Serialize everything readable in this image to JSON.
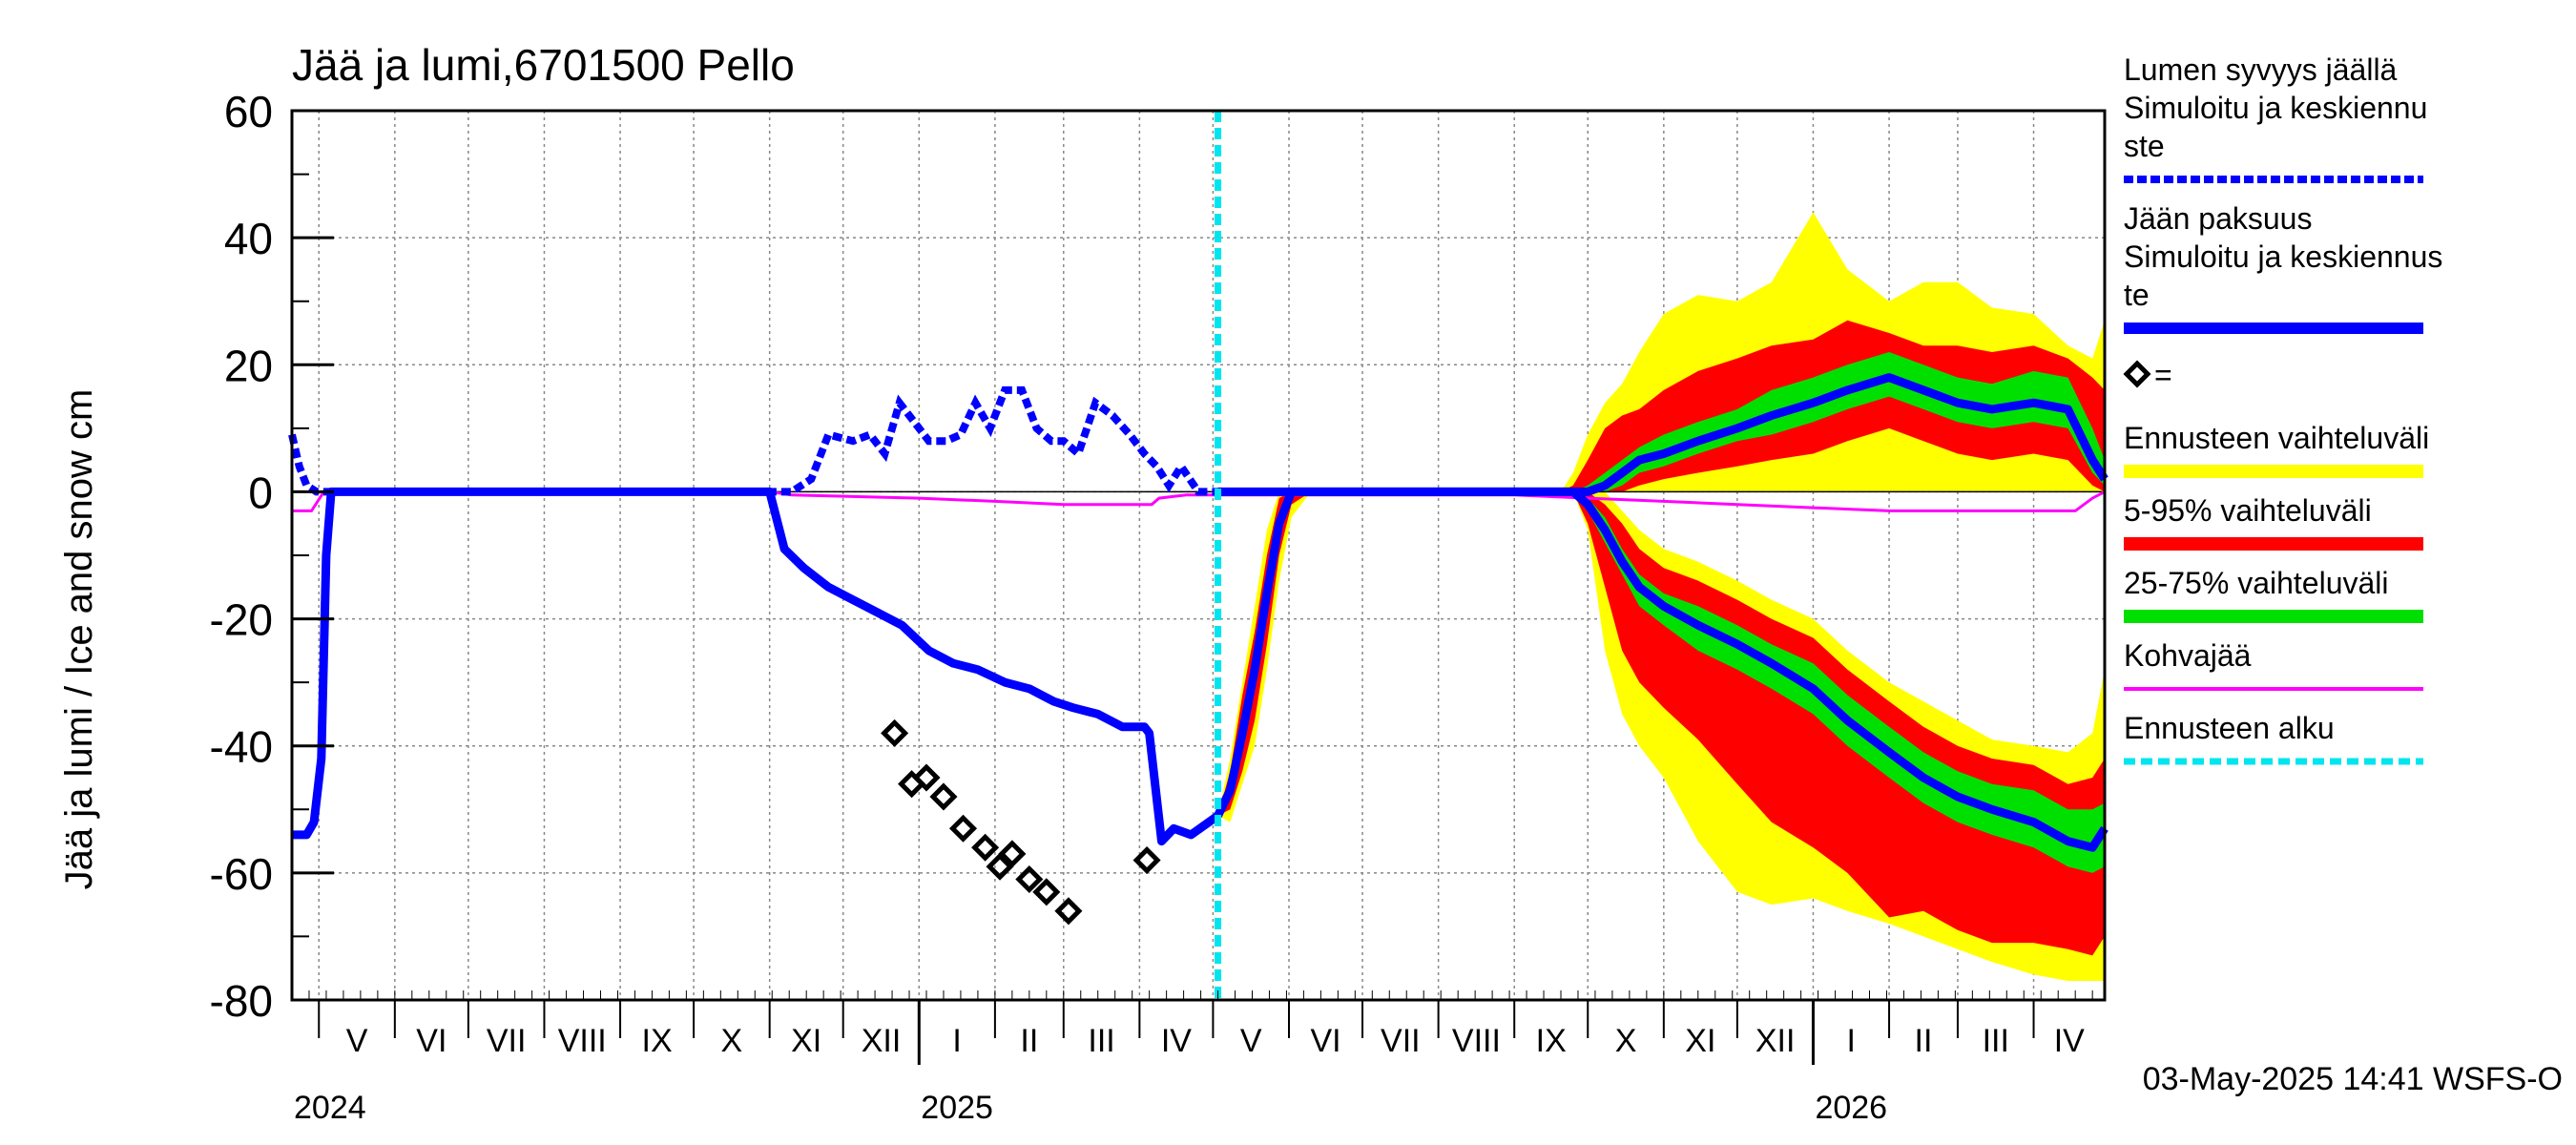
{
  "chart_data": {
    "type": "line",
    "title": "Jää ja lumi,6701500 Pello",
    "ylabel": "Jää ja lumi / Ice and snow    cm",
    "ylim": [
      -80,
      60
    ],
    "yticks": [
      -80,
      -60,
      -40,
      -20,
      0,
      20,
      40,
      60
    ],
    "xlim": [
      "2024-04-20",
      "2026-04-30"
    ],
    "forecast_start": "2025-05-03",
    "grid": true,
    "footer": "03-May-2025 14:41 WSFS-O",
    "months": [
      {
        "label": "V",
        "start": "2024-05-01"
      },
      {
        "label": "VI",
        "start": "2024-06-01"
      },
      {
        "label": "VII",
        "start": "2024-07-01"
      },
      {
        "label": "VIII",
        "start": "2024-08-01"
      },
      {
        "label": "IX",
        "start": "2024-09-01"
      },
      {
        "label": "X",
        "start": "2024-10-01"
      },
      {
        "label": "XI",
        "start": "2024-11-01"
      },
      {
        "label": "XII",
        "start": "2024-12-01"
      },
      {
        "label": "I",
        "start": "2025-01-01"
      },
      {
        "label": "II",
        "start": "2025-02-01"
      },
      {
        "label": "III",
        "start": "2025-03-01"
      },
      {
        "label": "IV",
        "start": "2025-04-01"
      },
      {
        "label": "V",
        "start": "2025-05-01"
      },
      {
        "label": "VI",
        "start": "2025-06-01"
      },
      {
        "label": "VII",
        "start": "2025-07-01"
      },
      {
        "label": "VIII",
        "start": "2025-08-01"
      },
      {
        "label": "IX",
        "start": "2025-09-01"
      },
      {
        "label": "X",
        "start": "2025-10-01"
      },
      {
        "label": "XI",
        "start": "2025-11-01"
      },
      {
        "label": "XII",
        "start": "2025-12-01"
      },
      {
        "label": "I",
        "start": "2026-01-01"
      },
      {
        "label": "II",
        "start": "2026-02-01"
      },
      {
        "label": "III",
        "start": "2026-03-01"
      },
      {
        "label": "IV",
        "start": "2026-04-01"
      }
    ],
    "years": [
      {
        "label": "2024",
        "date": "2024-04-20"
      },
      {
        "label": "2025",
        "date": "2025-01-01"
      },
      {
        "label": "2026",
        "date": "2026-01-01"
      }
    ],
    "legend": [
      {
        "label": "Lumen syvyys jäällä\n   Simuloitu ja keskiennu\nste",
        "color": "#0000ff",
        "style": "dashed",
        "series": "snow"
      },
      {
        "label": "Jään paksuus\n  Simuloitu ja keskiennus\nte",
        "color": "#0000ff",
        "style": "solid",
        "series": "ice"
      },
      {
        "label": "=",
        "color": "#000000",
        "style": "marker",
        "series": "observed"
      },
      {
        "label": "Ennusteen vaihteluväli",
        "color": "#ffff00",
        "style": "band"
      },
      {
        "label": "5-95% vaihteluväli",
        "color": "#ff0000",
        "style": "band"
      },
      {
        "label": "25-75% vaihteluväli",
        "color": "#00e000",
        "style": "band"
      },
      {
        "label": "Kohvajää",
        "color": "#ff00ff",
        "style": "line",
        "series": "slush"
      },
      {
        "label": "Ennusteen alku",
        "color": "#00e5ee",
        "style": "dashed-vline"
      }
    ],
    "colors": {
      "blue": "#0000ff",
      "yellow": "#ffff00",
      "red": "#ff0000",
      "green": "#00e000",
      "magenta": "#ff00ff",
      "cyan": "#00e5ee"
    },
    "series": [
      {
        "name": "Lumen syvyys jäällä",
        "style": "dashed",
        "x": [
          "2024-04-20",
          "2024-04-23",
          "2024-04-26",
          "2024-04-30",
          "2024-11-01",
          "2024-11-10",
          "2024-11-18",
          "2024-11-25",
          "2024-12-05",
          "2024-12-12",
          "2024-12-18",
          "2024-12-24",
          "2024-12-30",
          "2025-01-05",
          "2025-01-12",
          "2025-01-18",
          "2025-01-24",
          "2025-01-30",
          "2025-02-05",
          "2025-02-12",
          "2025-02-18",
          "2025-02-24",
          "2025-03-01",
          "2025-03-07",
          "2025-03-14",
          "2025-03-21",
          "2025-03-28",
          "2025-04-03",
          "2025-04-08",
          "2025-04-13",
          "2025-04-18",
          "2025-04-25",
          "2025-05-03"
        ],
        "y": [
          9,
          4,
          1,
          0,
          0,
          0,
          2,
          9,
          8,
          9,
          6,
          14,
          11,
          8,
          8,
          9,
          14,
          10,
          16,
          16,
          10,
          8,
          8,
          6,
          14,
          12,
          9,
          6,
          4,
          1,
          4,
          0,
          0
        ]
      },
      {
        "name": "Jään paksuus",
        "style": "solid",
        "x": [
          "2024-04-20",
          "2024-04-26",
          "2024-04-29",
          "2024-05-02",
          "2024-05-04",
          "2024-05-06",
          "2024-05-08",
          "2024-11-01",
          "2024-11-07",
          "2024-11-15",
          "2024-11-25",
          "2024-12-05",
          "2024-12-15",
          "2024-12-25",
          "2025-01-05",
          "2025-01-15",
          "2025-01-25",
          "2025-02-05",
          "2025-02-15",
          "2025-02-25",
          "2025-03-05",
          "2025-03-15",
          "2025-03-25",
          "2025-04-03",
          "2025-04-05",
          "2025-04-10",
          "2025-04-15",
          "2025-04-22",
          "2025-05-03"
        ],
        "y": [
          -54,
          -54,
          -52,
          -42,
          -10,
          0,
          0,
          0,
          -9,
          -12,
          -15,
          -17,
          -19,
          -21,
          -25,
          -27,
          -28,
          -30,
          -31,
          -33,
          -34,
          -35,
          -37,
          -37,
          -38,
          -55,
          -53,
          -54,
          -51
        ]
      },
      {
        "name": "Kohvajää",
        "style": "solid",
        "x": [
          "2024-04-20",
          "2024-04-28",
          "2024-05-03",
          "2024-11-01",
          "2024-11-10",
          "2025-01-01",
          "2025-02-01",
          "2025-03-01",
          "2025-04-01",
          "2025-04-06",
          "2025-04-09",
          "2025-04-20",
          "2025-05-01",
          "2025-09-01",
          "2025-10-01",
          "2025-11-01",
          "2025-12-01",
          "2026-01-01",
          "2026-02-01",
          "2026-03-01",
          "2026-04-01",
          "2026-04-18",
          "2026-04-25",
          "2026-04-30"
        ],
        "y": [
          -3,
          -3,
          0,
          0,
          -0.5,
          -1,
          -1.5,
          -2,
          -2,
          -2,
          -1,
          -0.5,
          -0.5,
          -0.5,
          -1,
          -1.5,
          -2,
          -2.5,
          -3,
          -3,
          -3,
          -3,
          -1,
          0
        ]
      }
    ],
    "observed": {
      "x": [
        "2024-12-22",
        "2024-12-29",
        "2025-01-04",
        "2025-01-11",
        "2025-01-19",
        "2025-01-28",
        "2025-02-03",
        "2025-02-08",
        "2025-02-15",
        "2025-02-22",
        "2025-03-03",
        "2025-04-04"
      ],
      "y": [
        -38,
        -46,
        -45,
        -48,
        -53,
        -56,
        -59,
        -57,
        -61,
        -63,
        -66,
        -58
      ]
    },
    "forecast": {
      "x": [
        "2025-05-03",
        "2025-05-08",
        "2025-05-13",
        "2025-05-18",
        "2025-05-23",
        "2025-05-28",
        "2025-06-02",
        "2025-06-10",
        "2025-09-10",
        "2025-09-20",
        "2025-09-25",
        "2025-10-01",
        "2025-10-08",
        "2025-10-15",
        "2025-10-22",
        "2025-11-01",
        "2025-11-15",
        "2025-12-01",
        "2025-12-15",
        "2026-01-01",
        "2026-01-15",
        "2026-02-01",
        "2026-02-15",
        "2026-03-01",
        "2026-03-15",
        "2026-04-01",
        "2026-04-15",
        "2026-04-25",
        "2026-04-30"
      ],
      "snow_mid": [
        0,
        0,
        0,
        0,
        0,
        0,
        0,
        0,
        0,
        0,
        0,
        0,
        1,
        3,
        5,
        6,
        8,
        10,
        12,
        14,
        16,
        18,
        16,
        14,
        13,
        14,
        13,
        5,
        2
      ],
      "snow_p25": [
        0,
        0,
        0,
        0,
        0,
        0,
        0,
        0,
        0,
        0,
        0,
        0,
        0,
        1,
        3,
        4,
        6,
        8,
        9,
        11,
        13,
        15,
        13,
        11,
        10,
        11,
        10,
        3,
        1
      ],
      "snow_p75": [
        0,
        0,
        0,
        0,
        0,
        0,
        0,
        0,
        0,
        0,
        0,
        1,
        3,
        5,
        7,
        9,
        11,
        13,
        16,
        18,
        20,
        22,
        20,
        18,
        17,
        19,
        18,
        10,
        5
      ],
      "snow_p05": [
        0,
        0,
        0,
        0,
        0,
        0,
        0,
        0,
        0,
        0,
        0,
        0,
        0,
        0,
        1,
        2,
        3,
        4,
        5,
        6,
        8,
        10,
        8,
        6,
        5,
        6,
        5,
        1,
        0
      ],
      "snow_p95": [
        0,
        0,
        0,
        0,
        0,
        0,
        0,
        0,
        0,
        0,
        1,
        5,
        10,
        12,
        13,
        16,
        19,
        21,
        23,
        24,
        27,
        25,
        23,
        23,
        22,
        23,
        21,
        18,
        16
      ],
      "snow_min": [
        0,
        0,
        0,
        0,
        0,
        0,
        0,
        0,
        0,
        0,
        0,
        0,
        0,
        0,
        0,
        0,
        0,
        0,
        0,
        0,
        0,
        0,
        0,
        0,
        0,
        0,
        0,
        0,
        0
      ],
      "snow_max": [
        0,
        0,
        0,
        0,
        0,
        0,
        0,
        0,
        0,
        0,
        3,
        9,
        14,
        17,
        22,
        28,
        31,
        30,
        33,
        44,
        35,
        30,
        33,
        33,
        29,
        28,
        23,
        21,
        27
      ],
      "ice_mid": [
        -51,
        -47,
        -38,
        -28,
        -16,
        -5,
        0,
        0,
        0,
        0,
        0,
        -2,
        -6,
        -11,
        -15,
        -18,
        -21,
        -24,
        -27,
        -31,
        -36,
        -41,
        -45,
        -48,
        -50,
        -52,
        -55,
        -56,
        -53
      ],
      "ice_p25": [
        -51,
        -46,
        -36,
        -26,
        -14,
        -3,
        0,
        0,
        0,
        0,
        0,
        -1,
        -4,
        -9,
        -13,
        -16,
        -18,
        -21,
        -24,
        -27,
        -32,
        -37,
        -41,
        -44,
        -46,
        -47,
        -50,
        -50,
        -49
      ],
      "ice_p75": [
        -51,
        -48,
        -40,
        -31,
        -19,
        -7,
        0,
        0,
        0,
        0,
        0,
        -3,
        -8,
        -13,
        -18,
        -21,
        -25,
        -28,
        -31,
        -35,
        -40,
        -45,
        -49,
        -52,
        -54,
        -56,
        -59,
        -60,
        -59
      ],
      "ice_p05": [
        -51,
        -44,
        -32,
        -22,
        -10,
        -1,
        0,
        0,
        0,
        0,
        0,
        0,
        -2,
        -5,
        -9,
        -12,
        -14,
        -17,
        -20,
        -23,
        -28,
        -33,
        -37,
        -40,
        -42,
        -43,
        -46,
        -45,
        -42
      ],
      "ice_p95": [
        -51,
        -50,
        -44,
        -36,
        -24,
        -10,
        -2,
        0,
        0,
        0,
        0,
        -5,
        -15,
        -25,
        -30,
        -34,
        -39,
        -46,
        -52,
        -56,
        -60,
        -67,
        -66,
        -69,
        -71,
        -71,
        -72,
        -73,
        -70
      ],
      "ice_min": [
        -51,
        -42,
        -30,
        -18,
        -6,
        0,
        0,
        0,
        0,
        0,
        0,
        0,
        0,
        -3,
        -6,
        -9,
        -11,
        -14,
        -17,
        -20,
        -25,
        -30,
        -33,
        -36,
        -39,
        -40,
        -41,
        -38,
        -28
      ],
      "ice_max": [
        -51,
        -52,
        -46,
        -40,
        -28,
        -14,
        -4,
        0,
        0,
        0,
        0,
        -6,
        -25,
        -35,
        -40,
        -45,
        -55,
        -63,
        -65,
        -64,
        -66,
        -68,
        -70,
        -72,
        -74,
        -76,
        -77,
        -77,
        -77
      ]
    }
  }
}
